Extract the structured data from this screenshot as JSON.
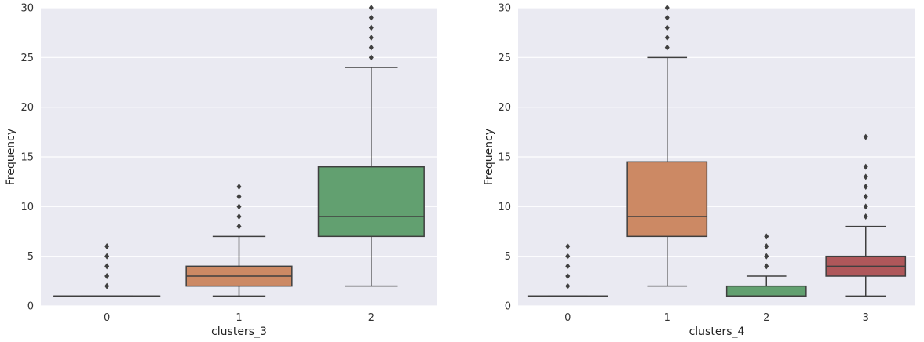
{
  "chart_data": [
    {
      "type": "box",
      "xlabel": "clusters_3",
      "ylabel": "Frequency",
      "ylim": [
        0,
        30
      ],
      "yticks": [
        0,
        5,
        10,
        15,
        20,
        25,
        30
      ],
      "grid": true,
      "categories": [
        "0",
        "1",
        "2"
      ],
      "boxes": [
        {
          "category": "0",
          "color": "#4c72b0",
          "whislo": 1,
          "q1": 1,
          "med": 1,
          "q3": 1,
          "whishi": 1,
          "fliers": [
            2,
            3,
            4,
            5,
            6
          ]
        },
        {
          "category": "1",
          "color": "#dd8452",
          "whislo": 1,
          "q1": 2,
          "med": 3,
          "q3": 4,
          "whishi": 7,
          "fliers": [
            8,
            9,
            10,
            11,
            12
          ]
        },
        {
          "category": "2",
          "color": "#55a868",
          "whislo": 2,
          "q1": 7,
          "med": 9,
          "q3": 14,
          "whishi": 24,
          "fliers": [
            25,
            26,
            27,
            28,
            29,
            30
          ]
        }
      ]
    },
    {
      "type": "box",
      "xlabel": "clusters_4",
      "ylabel": "Frequency",
      "ylim": [
        0,
        30
      ],
      "yticks": [
        0,
        5,
        10,
        15,
        20,
        25,
        30
      ],
      "grid": true,
      "categories": [
        "0",
        "1",
        "2",
        "3"
      ],
      "boxes": [
        {
          "category": "0",
          "color": "#4c72b0",
          "whislo": 1,
          "q1": 1,
          "med": 1,
          "q3": 1,
          "whishi": 1,
          "fliers": [
            2,
            3,
            4,
            5,
            6
          ]
        },
        {
          "category": "1",
          "color": "#dd8452",
          "whislo": 2,
          "q1": 7,
          "med": 9,
          "q3": 14.5,
          "whishi": 25,
          "fliers": [
            26,
            27,
            28,
            29,
            30
          ]
        },
        {
          "category": "2",
          "color": "#55a868",
          "whislo": 1,
          "q1": 1,
          "med": 1,
          "q3": 2,
          "whishi": 3,
          "fliers": [
            4,
            5,
            6,
            7
          ]
        },
        {
          "category": "3",
          "color": "#c44e52",
          "whislo": 1,
          "q1": 3,
          "med": 4,
          "q3": 5,
          "whishi": 8,
          "fliers": [
            9,
            10,
            11,
            12,
            13,
            14,
            17
          ]
        }
      ]
    }
  ]
}
